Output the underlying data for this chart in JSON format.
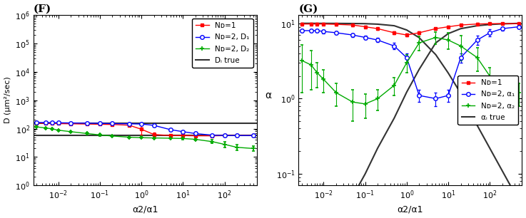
{
  "title_F": "(F)",
  "title_G": "(G)",
  "xlabel": "α2/α1",
  "ylabel_F": "D (μm²/sec)",
  "ylabel_G": "α",
  "x_vals": [
    0.003,
    0.005,
    0.007,
    0.01,
    0.02,
    0.05,
    0.1,
    0.2,
    0.5,
    1.0,
    2.0,
    5.0,
    10.0,
    20.0,
    50.0,
    100.0,
    200.0,
    500.0
  ],
  "F_red_y": [
    155,
    155,
    153,
    150,
    148,
    145,
    142,
    140,
    132,
    95,
    62,
    57,
    57,
    56,
    56,
    57,
    57,
    57
  ],
  "F_red_yerr_lo": [
    5,
    5,
    5,
    5,
    5,
    5,
    5,
    5,
    10,
    35,
    10,
    3,
    3,
    3,
    3,
    3,
    3,
    3
  ],
  "F_red_yerr_hi": [
    5,
    5,
    5,
    5,
    5,
    5,
    5,
    5,
    10,
    55,
    10,
    3,
    3,
    3,
    3,
    3,
    3,
    3
  ],
  "F_blue_y": [
    165,
    163,
    162,
    160,
    158,
    155,
    153,
    150,
    148,
    145,
    130,
    92,
    78,
    67,
    59,
    57,
    57,
    57
  ],
  "F_blue_yerr_lo": [
    5,
    5,
    5,
    5,
    5,
    5,
    5,
    5,
    5,
    5,
    8,
    8,
    6,
    4,
    3,
    3,
    3,
    3
  ],
  "F_blue_yerr_hi": [
    5,
    5,
    5,
    5,
    5,
    5,
    5,
    5,
    5,
    5,
    8,
    8,
    6,
    4,
    3,
    3,
    3,
    3
  ],
  "F_green_y": [
    115,
    105,
    98,
    88,
    78,
    67,
    60,
    55,
    50,
    48,
    47,
    46,
    45,
    42,
    35,
    28,
    22,
    20
  ],
  "F_green_yerr_lo": [
    6,
    6,
    6,
    6,
    6,
    5,
    4,
    4,
    3,
    3,
    3,
    3,
    3,
    4,
    5,
    6,
    5,
    4
  ],
  "F_green_yerr_hi": [
    6,
    6,
    6,
    6,
    6,
    5,
    4,
    4,
    3,
    3,
    3,
    3,
    3,
    4,
    5,
    6,
    5,
    4
  ],
  "F_true_D1": 150,
  "F_true_D2": 57,
  "G_red_y": [
    9.8,
    9.8,
    9.8,
    9.8,
    9.7,
    9.5,
    9.0,
    8.5,
    7.5,
    7.0,
    7.5,
    8.5,
    9.0,
    9.5,
    9.8,
    9.9,
    9.9,
    9.9
  ],
  "G_red_yerr_lo": [
    0.3,
    0.3,
    0.3,
    0.3,
    0.3,
    0.3,
    0.3,
    0.3,
    0.3,
    0.3,
    0.3,
    0.3,
    0.3,
    0.3,
    0.3,
    0.2,
    0.2,
    0.2
  ],
  "G_red_yerr_hi": [
    0.3,
    0.3,
    0.3,
    0.3,
    0.3,
    0.3,
    0.3,
    0.3,
    0.3,
    0.3,
    0.3,
    0.3,
    0.3,
    0.3,
    0.3,
    0.2,
    0.2,
    0.2
  ],
  "G_blue_y": [
    8.0,
    8.0,
    8.0,
    7.8,
    7.5,
    7.0,
    6.5,
    6.0,
    5.0,
    3.5,
    1.1,
    1.0,
    1.1,
    3.5,
    6.0,
    7.5,
    8.5,
    9.0
  ],
  "G_blue_yerr_lo": [
    0.4,
    0.4,
    0.4,
    0.4,
    0.4,
    0.4,
    0.4,
    0.4,
    0.5,
    0.5,
    0.2,
    0.2,
    0.2,
    0.5,
    0.8,
    0.8,
    0.5,
    0.4
  ],
  "G_blue_yerr_hi": [
    0.4,
    0.4,
    0.4,
    0.4,
    0.4,
    0.4,
    0.4,
    0.4,
    0.5,
    0.5,
    0.2,
    0.2,
    0.2,
    0.5,
    0.8,
    0.8,
    0.5,
    0.4
  ],
  "G_green_y": [
    3.2,
    2.8,
    2.2,
    1.8,
    1.2,
    0.9,
    0.85,
    1.0,
    1.5,
    3.0,
    5.5,
    6.5,
    6.0,
    5.0,
    3.5,
    2.0,
    1.3,
    1.2
  ],
  "G_green_yerr_lo": [
    2.0,
    1.5,
    0.8,
    0.6,
    0.4,
    0.4,
    0.3,
    0.3,
    0.4,
    0.8,
    1.2,
    1.2,
    1.5,
    1.8,
    1.2,
    0.6,
    0.4,
    0.4
  ],
  "G_green_yerr_hi": [
    2.0,
    1.5,
    0.8,
    0.6,
    0.4,
    0.4,
    0.3,
    0.3,
    0.4,
    0.8,
    1.2,
    1.2,
    1.5,
    1.8,
    1.2,
    0.6,
    0.4,
    0.4
  ],
  "G_true_x": [
    0.003,
    0.005,
    0.007,
    0.01,
    0.02,
    0.05,
    0.1,
    0.2,
    0.5,
    1.0,
    2.0,
    5.0,
    10.0,
    20.0,
    50.0,
    100.0,
    200.0,
    500.0
  ],
  "G_true_alpha1_y": [
    10.0,
    10.0,
    9.99,
    9.99,
    9.98,
    9.95,
    9.9,
    9.75,
    9.3,
    8.16,
    6.45,
    3.84,
    2.19,
    1.18,
    0.44,
    0.22,
    0.11,
    0.044
  ],
  "G_true_alpha2_y": [
    0.003,
    0.005,
    0.007,
    0.01,
    0.02,
    0.05,
    0.1,
    0.22,
    0.55,
    1.22,
    2.45,
    5.5,
    7.3,
    8.5,
    9.3,
    9.65,
    9.85,
    9.99
  ],
  "color_red": "#FF0000",
  "color_blue": "#0000FF",
  "color_green": "#00AA00",
  "color_true": "#333333",
  "xlim": [
    0.0025,
    600
  ],
  "F_ylim": [
    1.0,
    1000000
  ],
  "G_ylim": [
    0.07,
    13
  ]
}
